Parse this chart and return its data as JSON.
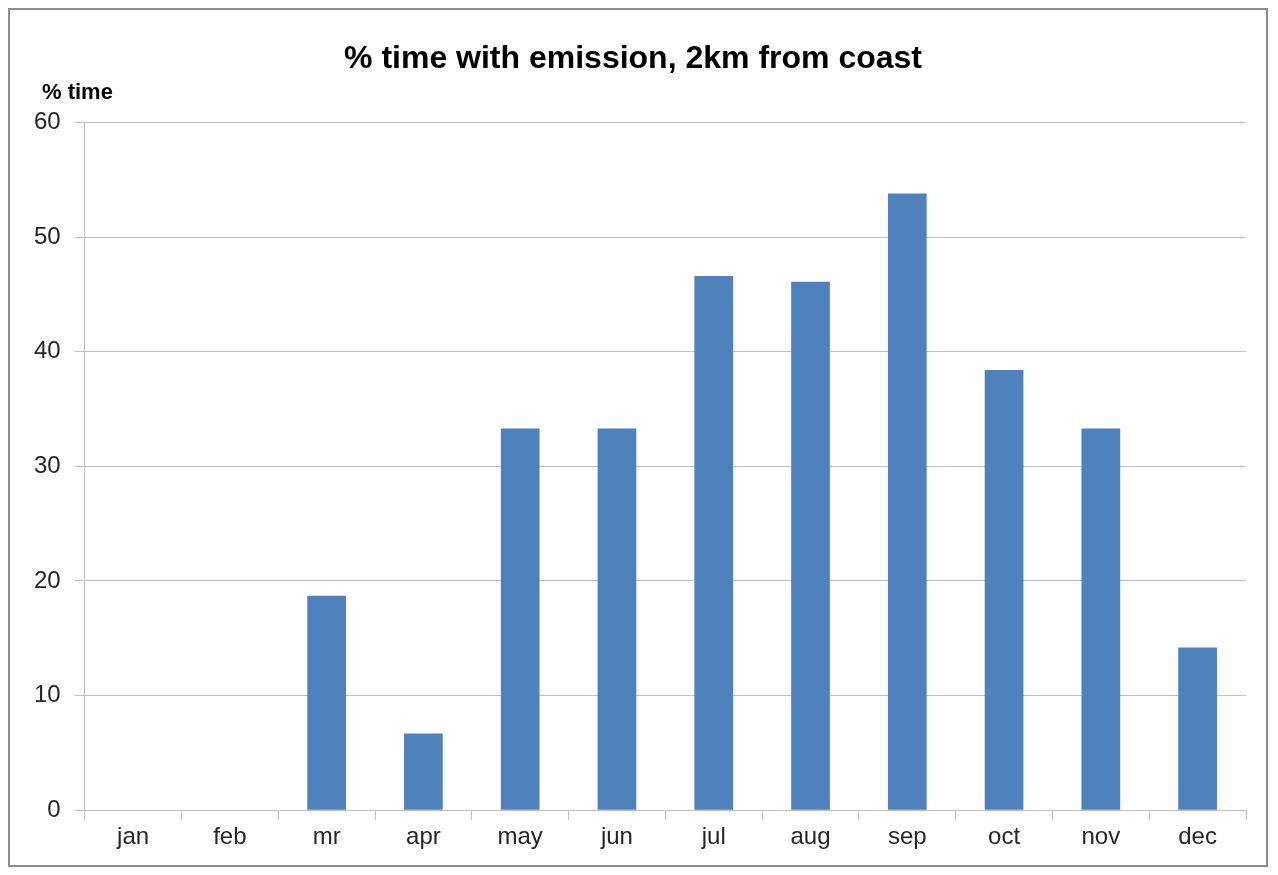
{
  "chart_data": {
    "type": "bar",
    "title": "% time with emission, 2km from coast",
    "ylabel": "% time",
    "categories": [
      "jan",
      "feb",
      "mr",
      "apr",
      "may",
      "jun",
      "jul",
      "aug",
      "sep",
      "oct",
      "nov",
      "dec"
    ],
    "values": [
      0,
      0,
      18.7,
      6.7,
      33.3,
      33.3,
      46.6,
      46.1,
      53.8,
      38.4,
      33.3,
      14.2
    ],
    "color": "#4f81bd",
    "ylim": [
      0,
      60
    ],
    "yticks": [
      0,
      10,
      20,
      30,
      40,
      50,
      60
    ],
    "grid": "y",
    "legend": false
  }
}
